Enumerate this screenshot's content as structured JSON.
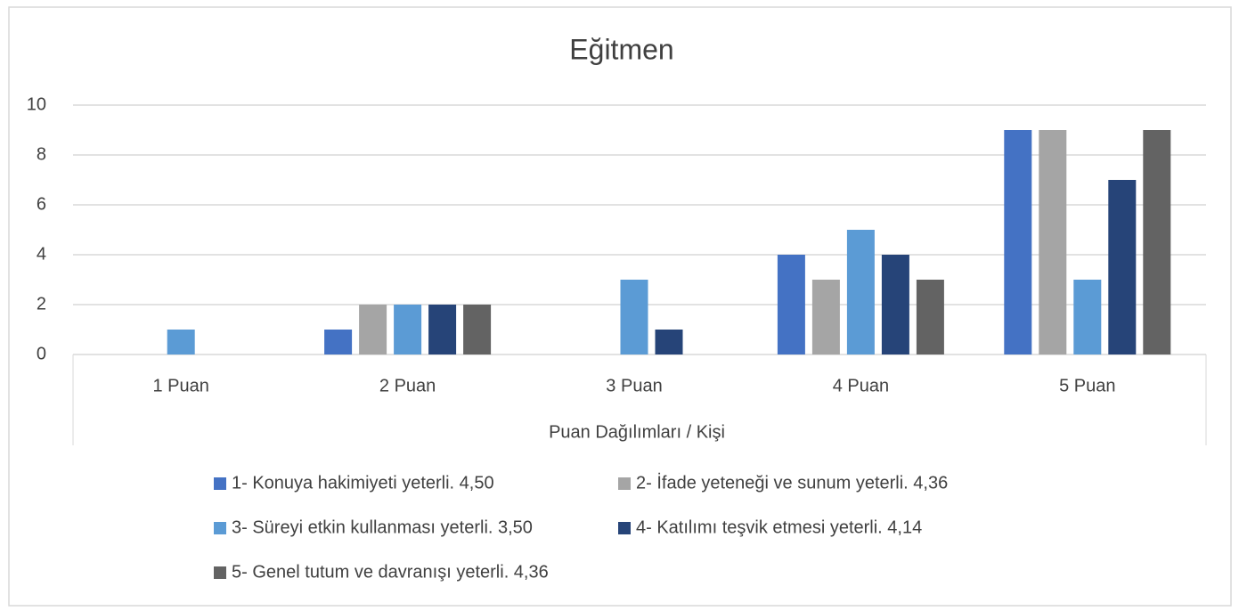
{
  "chart_data": {
    "type": "bar",
    "title": "Eğitmen",
    "x_label": "Puan Dağılımları / Kişi",
    "categories": [
      "1 Puan",
      "2 Puan",
      "3 Puan",
      "4 Puan",
      "5 Puan"
    ],
    "series": [
      {
        "name": "1- Konuya hakimiyeti yeterli. 4,50",
        "color": "#4472c4",
        "values": [
          0,
          1,
          0,
          4,
          9
        ]
      },
      {
        "name": "2- İfade yeteneği ve sunum yeterli. 4,36",
        "color": "#a5a5a5",
        "values": [
          0,
          2,
          0,
          3,
          9
        ]
      },
      {
        "name": "3- Süreyi etkin kullanması yeterli. 3,50",
        "color": "#5b9bd5",
        "values": [
          1,
          2,
          3,
          5,
          3
        ]
      },
      {
        "name": "4- Katılımı teşvik etmesi yeterli. 4,14",
        "color": "#264478",
        "values": [
          0,
          2,
          1,
          4,
          7
        ]
      },
      {
        "name": "5- Genel tutum ve davranışı yeterli. 4,36",
        "color": "#636363",
        "values": [
          0,
          2,
          0,
          3,
          9
        ]
      }
    ],
    "ylim": [
      0,
      10
    ],
    "yticks": [
      0,
      2,
      4,
      6,
      8,
      10
    ],
    "grid": true,
    "legend": "bottom"
  }
}
